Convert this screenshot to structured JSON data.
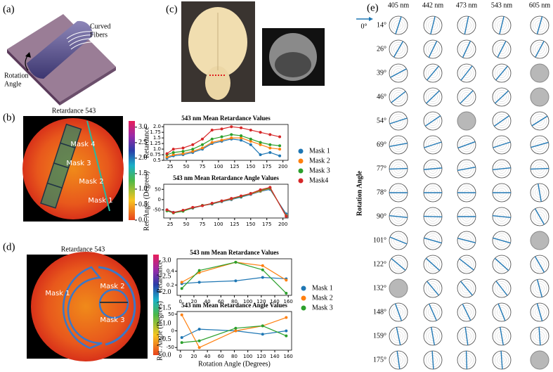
{
  "panel_labels": [
    "(a)",
    "(b)",
    "(c)",
    "(d)",
    "(e)"
  ],
  "panel_a": {
    "fibers_label": [
      "Curved",
      "Fibers"
    ],
    "rotation_label": [
      "Rotation",
      "Angle"
    ]
  },
  "panel_b": {
    "image_title": "Retardance 543",
    "clim": [
      0,
      3.2
    ],
    "colorbar_ticks": [
      {
        "value": 0,
        "label": "0.0"
      },
      0.5,
      {
        "value": 1,
        "label": "1.0"
      },
      1.5,
      {
        "value": 2,
        "label": "2.0"
      },
      2.5,
      {
        "value": 3,
        "label": "3.0"
      }
    ],
    "mask_labels": [
      "Mask 4",
      "Mask 3",
      "Mask 2",
      "Mask 1"
    ]
  },
  "panel_d": {
    "image_title": "Retardance 543",
    "clim": [
      0,
      3.2
    ],
    "colorbar_ticks": [
      {
        "value": 0,
        "label": "0.0"
      },
      0.5,
      {
        "value": 1,
        "label": "1.0"
      },
      1.5,
      {
        "value": 2,
        "label": "2.0"
      },
      2.5,
      {
        "value": 3,
        "label": "3.0"
      }
    ],
    "mask_labels": [
      "Mask 1",
      "Mask 2",
      "Mask 3"
    ]
  },
  "panel_e": {
    "columns": [
      "405 nm",
      "442 nm",
      "473 nm",
      "543 nm",
      "605 nm"
    ],
    "reference": "0°",
    "axis_title": "Rotation Angle",
    "rows": [
      {
        "label": "14°",
        "orientations": [
          18,
          14,
          12,
          14,
          16
        ]
      },
      {
        "label": "26°",
        "orientations": [
          30,
          26,
          25,
          27,
          28
        ]
      },
      {
        "label": "39°",
        "orientations": [
          62,
          40,
          38,
          40,
          null
        ]
      },
      {
        "label": "46°",
        "orientations": [
          52,
          46,
          45,
          47,
          null
        ]
      },
      {
        "label": "54°",
        "orientations": [
          72,
          56,
          null,
          55,
          58
        ]
      },
      {
        "label": "69°",
        "orientations": [
          80,
          72,
          70,
          72,
          74
        ]
      },
      {
        "label": "77°",
        "orientations": [
          88,
          85,
          80,
          84,
          88
        ]
      },
      {
        "label": "78°",
        "orientations": [
          90,
          90,
          90,
          90,
          170
        ]
      },
      {
        "label": "90°",
        "orientations": [
          96,
          92,
          90,
          96,
          150
        ]
      },
      {
        "label": "101°",
        "orientations": [
          112,
          106,
          104,
          106,
          null
        ]
      },
      {
        "label": "122°",
        "orientations": [
          130,
          132,
          128,
          132,
          150
        ]
      },
      {
        "label": "132°",
        "orientations": [
          null,
          140,
          140,
          142,
          165
        ]
      },
      {
        "label": "148°",
        "orientations": [
          160,
          156,
          154,
          158,
          164
        ]
      },
      {
        "label": "159°",
        "orientations": [
          168,
          170,
          172,
          170,
          176
        ]
      },
      {
        "label": "175°",
        "orientations": [
          172,
          176,
          178,
          176,
          null
        ]
      }
    ]
  },
  "chart_data": [
    {
      "type": "line",
      "title": "543 nm Mean Retardance Values",
      "ylabel": "Retardance",
      "legend": "right",
      "x": [
        20,
        30,
        45,
        60,
        75,
        90,
        105,
        120,
        135,
        150,
        165,
        180,
        195
      ],
      "xlim": [
        15,
        208
      ],
      "xticks": [
        25,
        50,
        75,
        100,
        125,
        150,
        175,
        200
      ],
      "ylim": [
        0.5,
        2.1
      ],
      "yticks": [
        0.5,
        0.75,
        {
          "value": 1,
          "label": "1.0"
        },
        1.25,
        1.5,
        1.75,
        {
          "value": 2,
          "label": "2.0"
        }
      ],
      "series": [
        {
          "name": "Mask 1",
          "color": "#1f77b4",
          "values": [
            0.6,
            0.7,
            0.75,
            0.85,
            1.0,
            1.25,
            1.35,
            1.45,
            1.4,
            1.2,
            0.75,
            0.85,
            0.7
          ]
        },
        {
          "name": "Mask 2",
          "color": "#ff7f0e",
          "values": [
            0.65,
            0.75,
            0.8,
            0.9,
            1.05,
            1.3,
            1.4,
            1.5,
            1.5,
            1.35,
            1.2,
            1.05,
            1.0
          ]
        },
        {
          "name": "Mask 3",
          "color": "#2ca02c",
          "values": [
            0.75,
            0.85,
            0.9,
            1.0,
            1.2,
            1.45,
            1.55,
            1.65,
            1.6,
            1.45,
            1.3,
            1.2,
            1.15
          ]
        },
        {
          "name": "Mask4",
          "color": "#d62728",
          "values": [
            0.8,
            1.0,
            1.05,
            1.2,
            1.45,
            1.85,
            1.9,
            2.0,
            1.95,
            1.85,
            1.75,
            1.65,
            1.55
          ]
        }
      ]
    },
    {
      "type": "line",
      "title": "543 nm Mean Retardance Angle Values",
      "ylabel": "Ret. Angle (Degrees)",
      "x": [
        20,
        30,
        45,
        60,
        75,
        90,
        105,
        120,
        135,
        150,
        165,
        180,
        205
      ],
      "xlim": [
        15,
        208
      ],
      "xticks": [
        25,
        50,
        75,
        100,
        125,
        150,
        175,
        200
      ],
      "ylim": [
        -90,
        75
      ],
      "yticks": [
        -50,
        0,
        50
      ],
      "series": [
        {
          "color": "#1f77b4",
          "values": [
            -50,
            -62,
            -55,
            -42,
            -30,
            -22,
            -10,
            0,
            12,
            25,
            40,
            50,
            -70
          ]
        },
        {
          "color": "#ff7f0e",
          "values": [
            -52,
            -65,
            -55,
            -40,
            -30,
            -20,
            -8,
            3,
            15,
            28,
            42,
            55,
            -78
          ]
        },
        {
          "color": "#2ca02c",
          "values": [
            -55,
            -65,
            -57,
            -40,
            -28,
            -20,
            -7,
            5,
            15,
            30,
            45,
            57,
            -80
          ]
        },
        {
          "color": "#d62728",
          "values": [
            -50,
            -63,
            -52,
            -38,
            -30,
            -18,
            -6,
            6,
            18,
            30,
            48,
            60,
            -82
          ]
        }
      ]
    },
    {
      "type": "line",
      "title": "543 nm Mean Retardance Values",
      "ylabel": "Retardance",
      "legend": "right",
      "x": [
        2,
        28,
        82,
        122,
        157
      ],
      "xlim": [
        -5,
        165
      ],
      "xticks": [
        0,
        20,
        40,
        60,
        80,
        100,
        120,
        140,
        160
      ],
      "ylim": [
        0.05,
        0.58
      ],
      "yticks": [
        0.2,
        0.4
      ],
      "series": [
        {
          "name": "Mask 1",
          "color": "#1f77b4",
          "values": [
            0.22,
            0.24,
            0.26,
            0.31,
            0.29
          ]
        },
        {
          "name": "Mask 2",
          "color": "#ff7f0e",
          "values": [
            0.24,
            0.38,
            0.53,
            0.48,
            0.27
          ]
        },
        {
          "name": "Mask 3",
          "color": "#2ca02c",
          "values": [
            0.15,
            0.41,
            0.53,
            0.42,
            0.08
          ]
        }
      ]
    },
    {
      "type": "line",
      "title": "543 nm Mean Retardance Angle Values",
      "ylabel": "Ret. Angle (Degrees)",
      "xlabel": "Rotation Angle (Degrees)",
      "x": [
        2,
        28,
        82,
        122,
        157
      ],
      "xlim": [
        -5,
        165
      ],
      "xticks": [
        0,
        20,
        40,
        60,
        80,
        100,
        120,
        140,
        160
      ],
      "ylim": [
        -58,
        58
      ],
      "yticks": [
        -50,
        0,
        50
      ],
      "series": [
        {
          "color": "#1f77b4",
          "values": [
            -20,
            5,
            0,
            -10,
            0
          ]
        },
        {
          "color": "#ff7f0e",
          "values": [
            48,
            -50,
            0,
            15,
            40
          ]
        },
        {
          "color": "#2ca02c",
          "values": [
            -35,
            -30,
            8,
            15,
            -15
          ]
        }
      ]
    }
  ]
}
